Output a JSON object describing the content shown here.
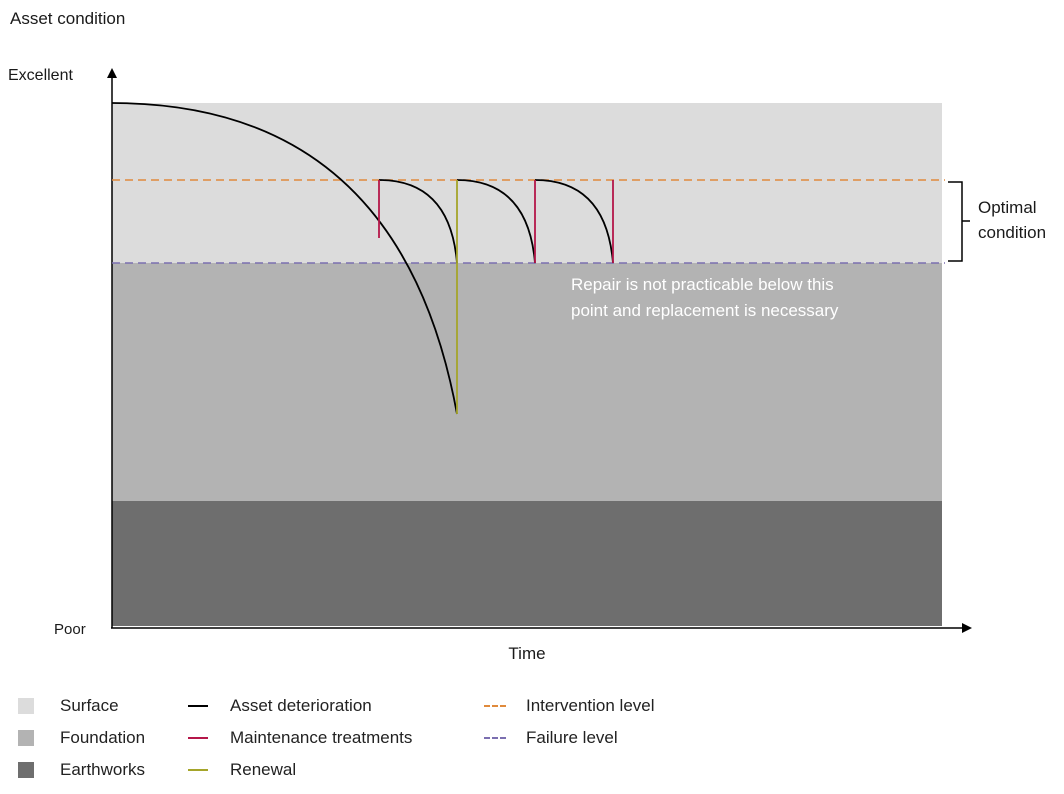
{
  "title": "Asset condition",
  "y_axis": {
    "top_label": "Excellent",
    "bottom_label": "Poor"
  },
  "x_axis": {
    "label": "Time"
  },
  "annotations": {
    "optimal_line1": "Optimal",
    "optimal_line2": "condition",
    "repair_line1": "Repair is not practicable below this",
    "repair_line2": "point and replacement is necessary"
  },
  "colors": {
    "surface": "#dcdcdc",
    "foundation": "#b3b3b3",
    "earthworks": "#6e6e6e",
    "asset_deterioration": "#000000",
    "maintenance": "#b5174a",
    "renewal": "#a5a52a",
    "intervention": "#e08a3c",
    "failure": "#7b6fb0"
  },
  "legend": {
    "layers": [
      {
        "key": "surface",
        "label": "Surface"
      },
      {
        "key": "foundation",
        "label": "Foundation"
      },
      {
        "key": "earthworks",
        "label": "Earthworks"
      }
    ],
    "lines": [
      {
        "key": "asset_deterioration",
        "label": "Asset deterioration"
      },
      {
        "key": "maintenance",
        "label": "Maintenance treatments"
      },
      {
        "key": "renewal",
        "label": "Renewal"
      }
    ],
    "levels": [
      {
        "key": "intervention",
        "label": "Intervention level"
      },
      {
        "key": "failure",
        "label": "Failure level"
      }
    ]
  }
}
